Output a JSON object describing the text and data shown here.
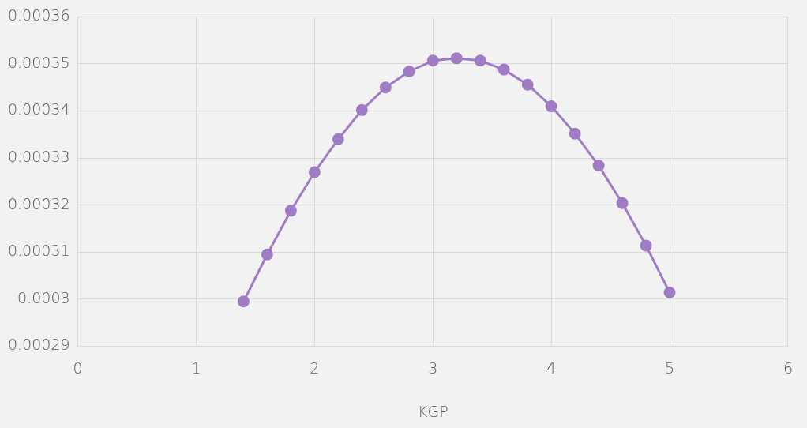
{
  "chart_data": {
    "type": "line",
    "xlabel": "KGP",
    "x": [
      1.4,
      1.6,
      1.8,
      2.0,
      2.2,
      2.4,
      2.6,
      2.8,
      3.0,
      3.2,
      3.4,
      3.6,
      3.8,
      4.0,
      4.2,
      4.4,
      4.6,
      4.8,
      5.0
    ],
    "series": [
      {
        "color": "#a07cc5",
        "values": [
          0.0002995,
          0.0003095,
          0.0003188,
          0.000327,
          0.000334,
          0.0003402,
          0.000345,
          0.0003484,
          0.0003507,
          0.0003512,
          0.0003507,
          0.0003488,
          0.0003456,
          0.000341,
          0.0003352,
          0.0003284,
          0.0003204,
          0.0003114,
          0.0003014
        ]
      }
    ],
    "xlim": [
      0,
      6
    ],
    "xticks": [
      0,
      1,
      2,
      3,
      4,
      5,
      6
    ],
    "ylim": [
      0.00029,
      0.00036
    ],
    "yticks": [
      0.00029,
      0.0003,
      0.00031,
      0.00032,
      0.00033,
      0.00034,
      0.00035,
      0.00036
    ],
    "grid": true,
    "marker": "circle",
    "line_style": "solid",
    "legend": false
  }
}
